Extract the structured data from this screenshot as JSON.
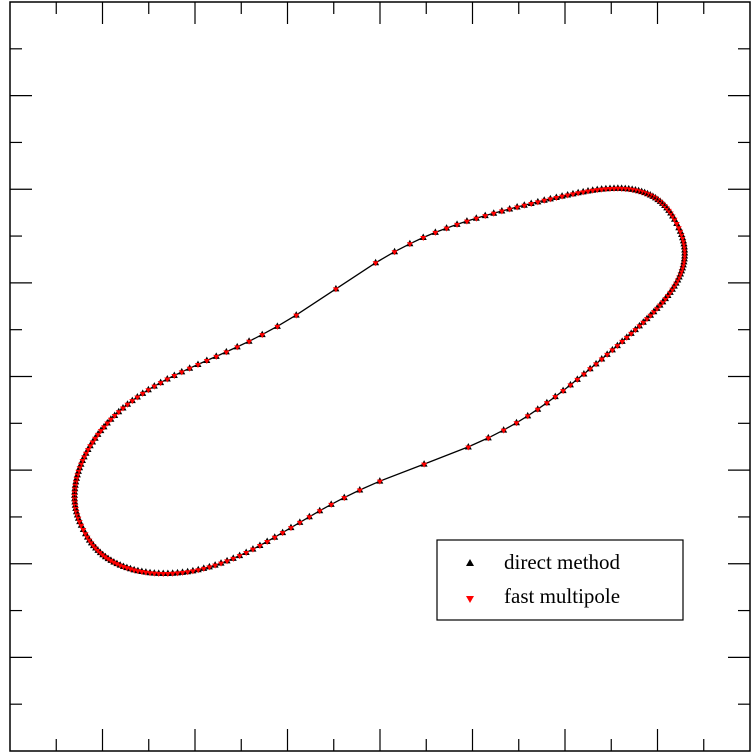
{
  "chart_data": {
    "type": "scatter",
    "title": "",
    "xlabel": "",
    "ylabel": "",
    "xlim": [
      0,
      8
    ],
    "ylim": [
      0,
      8
    ],
    "grid": false,
    "legend_position": "bottom-right",
    "shape": {
      "form": "closed-curve",
      "center": [
        4.0,
        4.0
      ],
      "description_points": [
        [
          1.0,
          3.1
        ],
        [
          2.0,
          1.98
        ],
        [
          6.0,
          5.57
        ],
        [
          7.0,
          4.9
        ]
      ]
    },
    "series": [
      {
        "name": "direct method",
        "marker": "triangle-up",
        "color": "#000000"
      },
      {
        "name": "fast multipole",
        "marker": "triangle-down",
        "color": "#ff0000"
      }
    ]
  },
  "colors": {
    "axis": "#000000",
    "direct": "#000000",
    "fmm": "#ff0000"
  }
}
